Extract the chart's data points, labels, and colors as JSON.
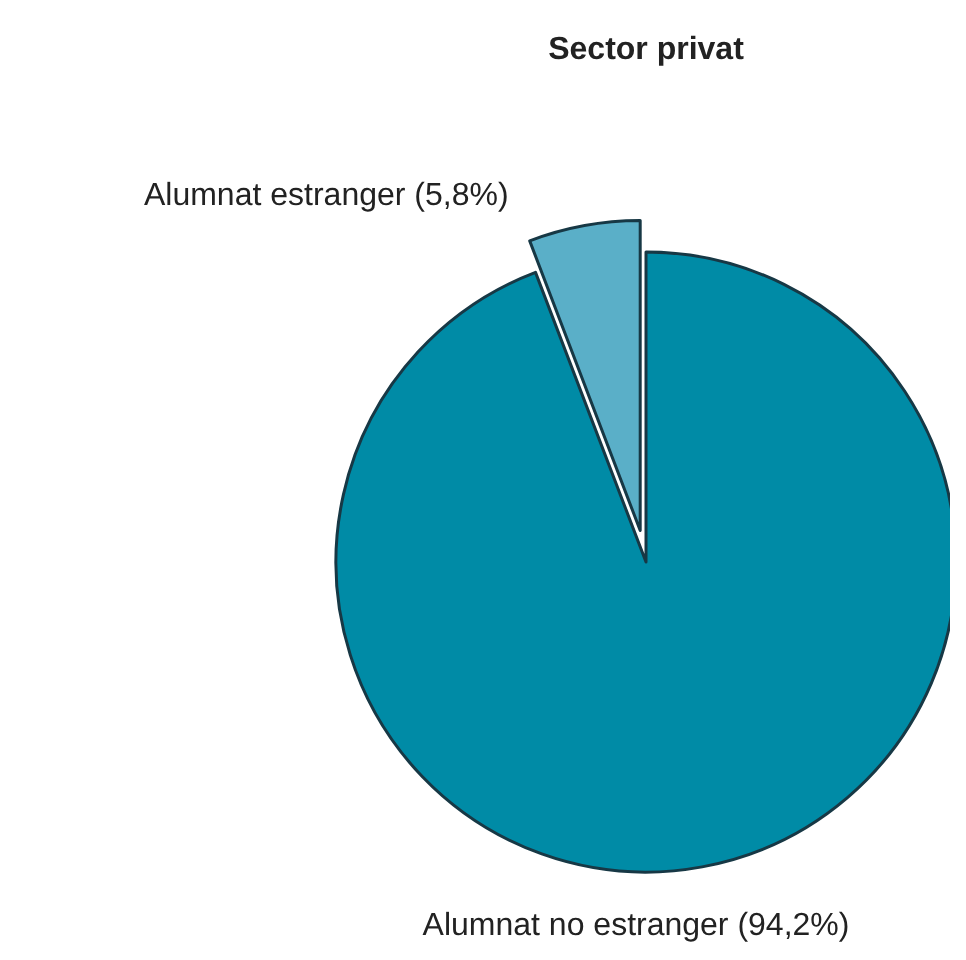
{
  "chart_data": {
    "type": "pie",
    "title": "Sector privat",
    "categories": [
      "Alumnat estranger",
      "Alumnat no estranger"
    ],
    "values": [
      5.8,
      94.2
    ],
    "value_labels": [
      "(5,8%)",
      "(94,2%)"
    ],
    "colors": [
      "#5aafc8",
      "#008ba6"
    ]
  }
}
